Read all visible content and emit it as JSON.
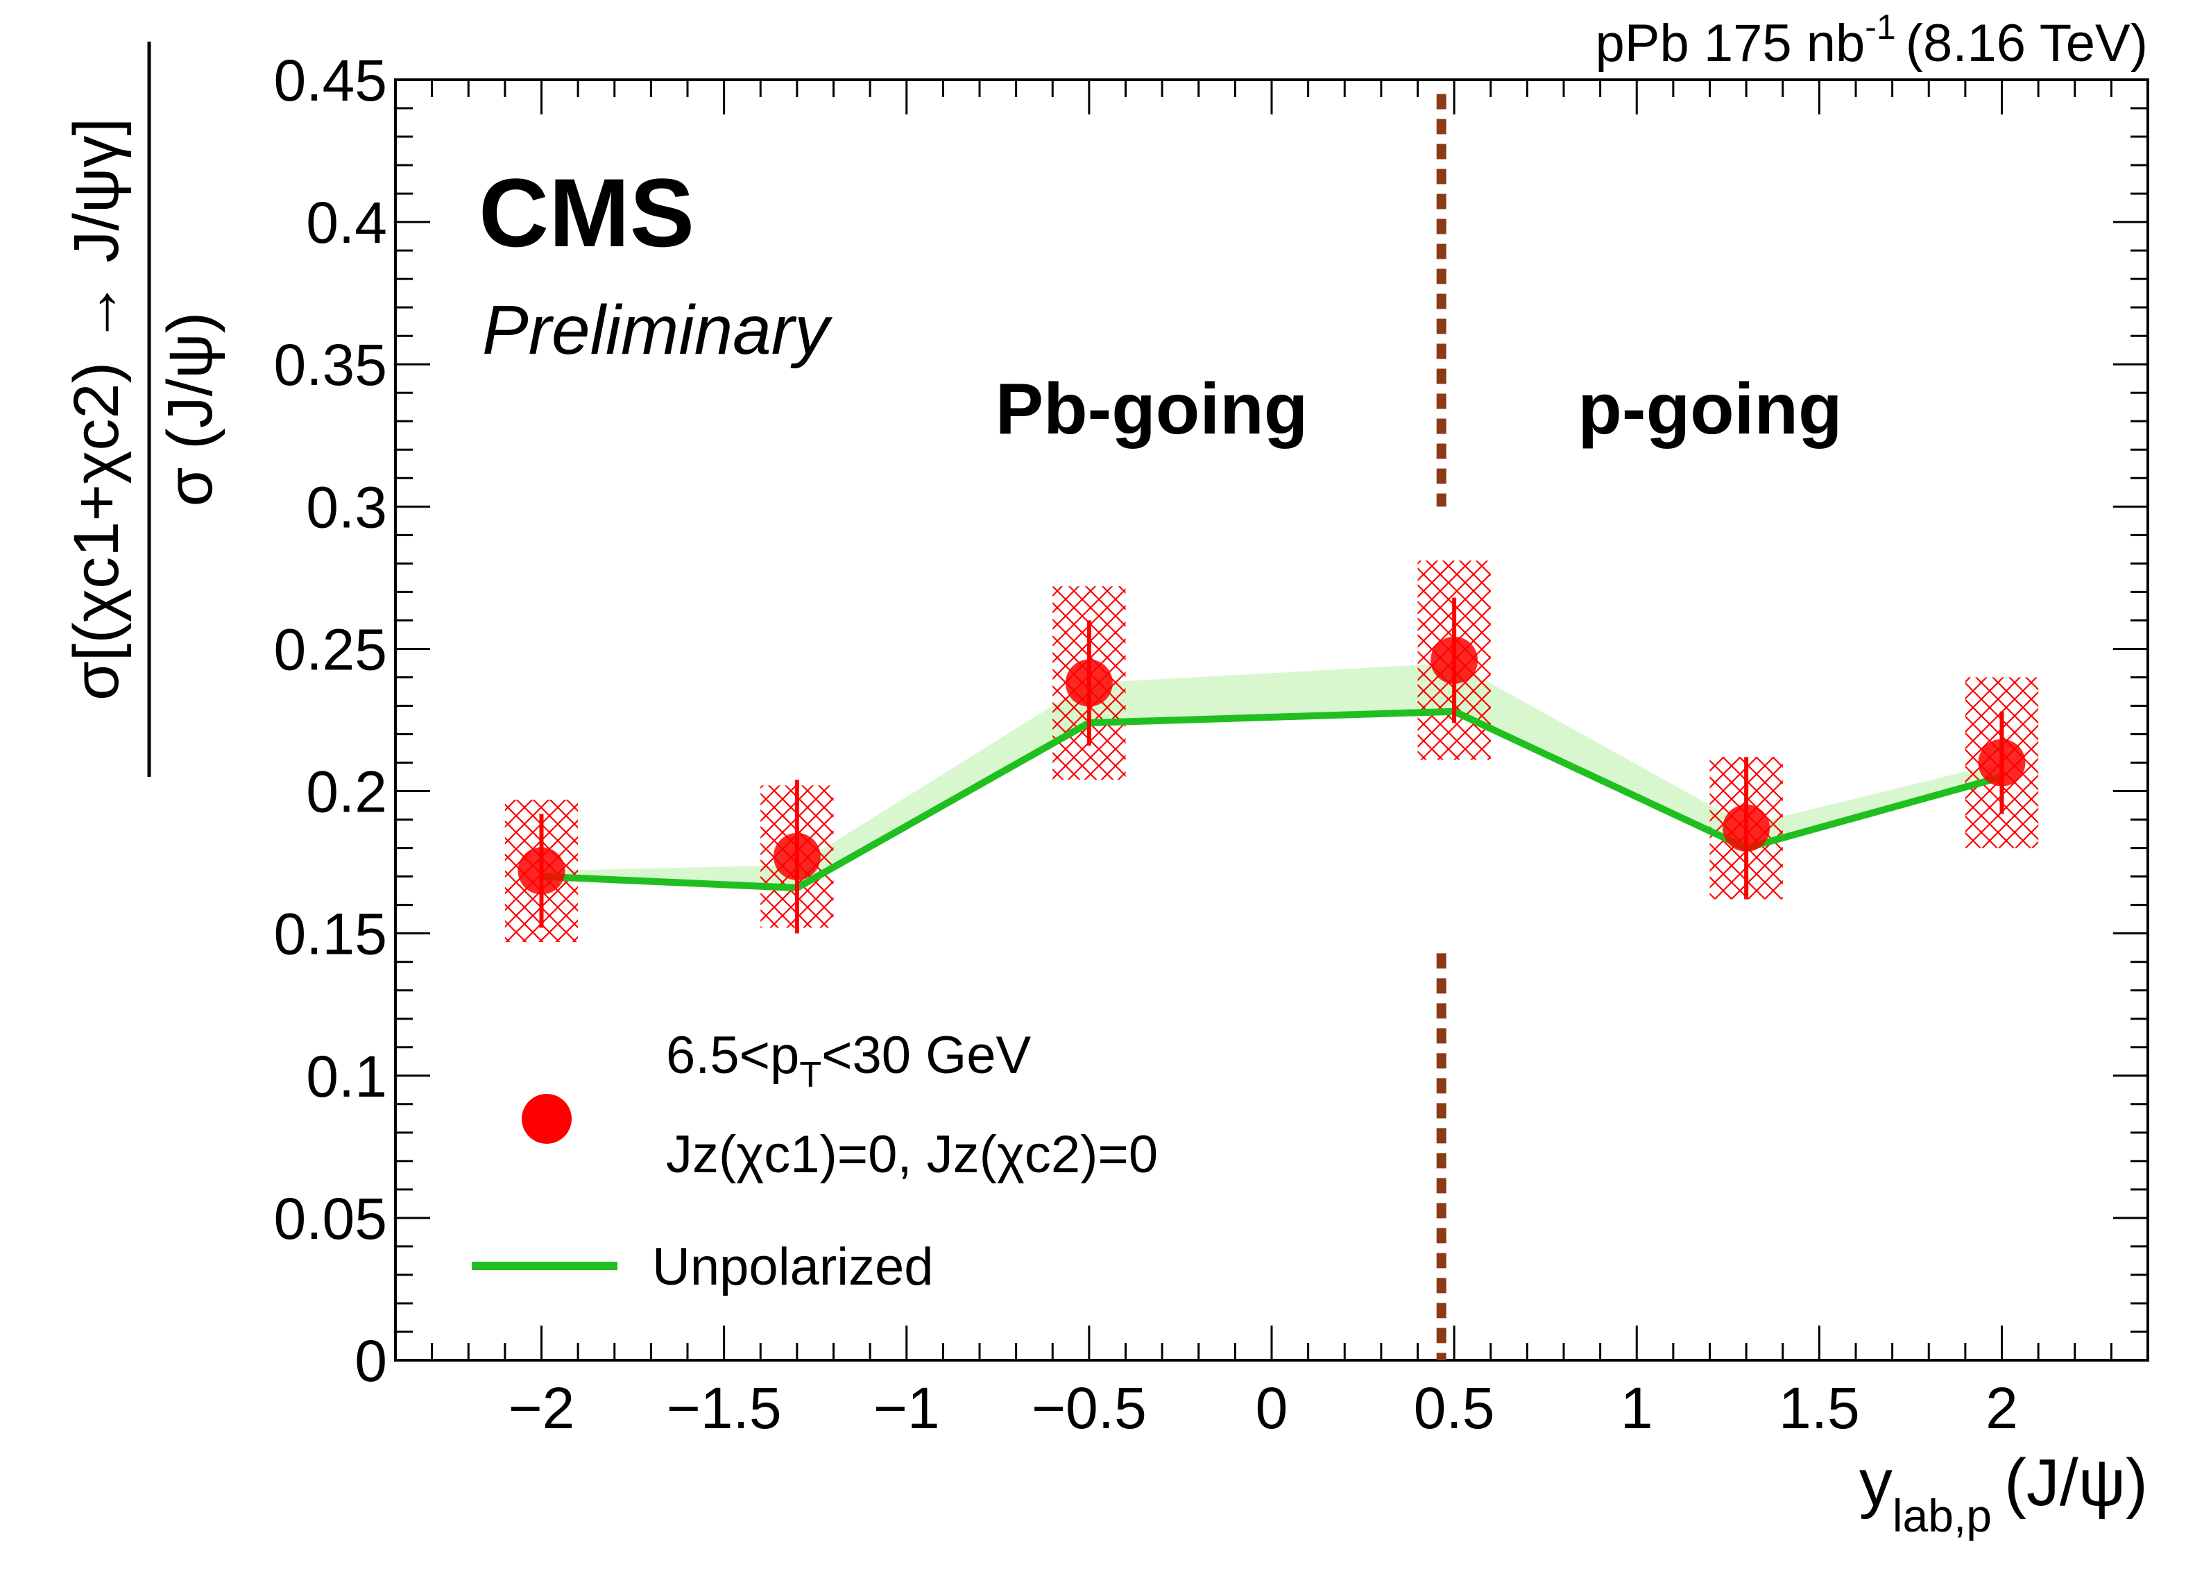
{
  "chart_data": {
    "type": "scatter",
    "header_text": "pPb 175 nb",
    "header_sup": "-1",
    "header_energy": "(8.16 TeV)",
    "experiment": "CMS",
    "status": "Preliminary",
    "region_labels": [
      "Pb-going",
      "p-going"
    ],
    "divider_x": 0.465,
    "xlabel": "y",
    "xlabel_sub": "lab,p",
    "xlabel_suffix": "(J/ψ)",
    "ylabel_numerator": "σ[(χc1+χc2) → J/ψγ]",
    "ylabel_denominator": "σ (J/ψ)",
    "xlim": [
      -2.4,
      2.4
    ],
    "ylim": [
      0,
      0.45
    ],
    "xticks": [
      -2,
      -1.5,
      -1,
      -0.5,
      0,
      0.5,
      1,
      1.5,
      2
    ],
    "xtick_labels": [
      "−2",
      "−1.5",
      "−1",
      "−0.5",
      "0",
      "0.5",
      "1",
      "1.5",
      "2"
    ],
    "yticks": [
      0,
      0.05,
      0.1,
      0.15,
      0.2,
      0.25,
      0.3,
      0.35,
      0.4,
      0.45
    ],
    "ytick_labels": [
      "0",
      "0.05",
      "0.1",
      "0.15",
      "0.2",
      "0.25",
      "0.3",
      "0.35",
      "0.4",
      "0.45"
    ],
    "series": [
      {
        "name": "Jz(χc1)=0, Jz(χc2)=0",
        "color": "#ff0000",
        "x": [
          -2.0,
          -1.3,
          -0.5,
          0.5,
          1.3,
          2.0
        ],
        "y": [
          0.172,
          0.177,
          0.238,
          0.246,
          0.187,
          0.21
        ],
        "stat_err": [
          0.02,
          0.027,
          0.022,
          0.022,
          0.025,
          0.018
        ],
        "syst_err": [
          0.025,
          0.025,
          0.034,
          0.035,
          0.025,
          0.03
        ],
        "syst_halfwidth_x": 0.1
      },
      {
        "name": "Unpolarized",
        "color": "#1fbf1f",
        "band_color": "#d8f7cf",
        "x": [
          -2.0,
          -1.3,
          -0.5,
          0.5,
          1.3,
          2.0
        ],
        "y": [
          0.17,
          0.166,
          0.224,
          0.228,
          0.18,
          0.205
        ],
        "band_upper": [
          0.172,
          0.174,
          0.238,
          0.245,
          0.188,
          0.21
        ]
      }
    ],
    "legend": {
      "entry1_line1_a": "6.5<p",
      "entry1_line1_sub": "T",
      "entry1_line1_b": "<30 GeV",
      "entry1_line2": "Jz(χc1)=0, Jz(χc2)=0",
      "entry2": "Unpolarized"
    }
  }
}
